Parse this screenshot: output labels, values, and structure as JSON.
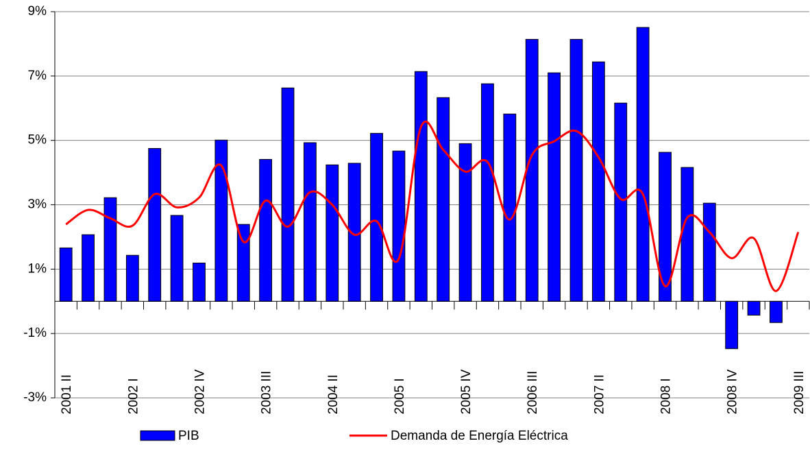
{
  "chart_data": {
    "type": "bar-line",
    "categories": [
      "2001 II",
      null,
      null,
      "2002 I",
      null,
      null,
      "2002 IV",
      null,
      null,
      "2003 III",
      null,
      null,
      "2004 II",
      null,
      null,
      "2005 I",
      null,
      null,
      "2005 IV",
      null,
      null,
      "2006 III",
      null,
      null,
      "2007 II",
      null,
      null,
      "2008 I",
      null,
      null,
      "2008 IV",
      null,
      null,
      "2009 III"
    ],
    "series": [
      {
        "name": "PIB",
        "type": "bar",
        "color": "#0000ff",
        "values": [
          1.66,
          2.07,
          3.22,
          1.43,
          4.75,
          2.67,
          1.19,
          5.01,
          2.39,
          4.41,
          6.63,
          4.93,
          4.24,
          4.29,
          5.22,
          4.67,
          7.14,
          6.33,
          4.9,
          6.76,
          5.82,
          8.14,
          7.1,
          8.14,
          7.44,
          6.16,
          8.51,
          4.63,
          4.16,
          3.05,
          -1.47,
          -0.43,
          -0.66,
          null
        ]
      },
      {
        "name": "Demanda de Energía Eléctrica",
        "type": "line",
        "color": "#ff0000",
        "values": [
          2.39,
          2.84,
          2.58,
          2.35,
          3.33,
          2.92,
          3.22,
          4.22,
          1.85,
          3.13,
          2.32,
          3.39,
          3.0,
          2.07,
          2.49,
          1.32,
          5.42,
          4.71,
          4.03,
          4.33,
          2.54,
          4.54,
          4.97,
          5.29,
          4.48,
          3.18,
          3.33,
          0.47,
          2.6,
          2.15,
          1.34,
          1.96,
          0.32,
          2.15
        ]
      }
    ],
    "ylim": [
      -3,
      9
    ],
    "yticks": [
      {
        "value": -3,
        "label": "-3%"
      },
      {
        "value": -1,
        "label": "-1%"
      },
      {
        "value": 1,
        "label": "1%"
      },
      {
        "value": 3,
        "label": "3%"
      },
      {
        "value": 5,
        "label": "5%"
      },
      {
        "value": 7,
        "label": "7%"
      },
      {
        "value": 9,
        "label": "9%"
      }
    ],
    "grid": true,
    "legend": "bottom"
  }
}
